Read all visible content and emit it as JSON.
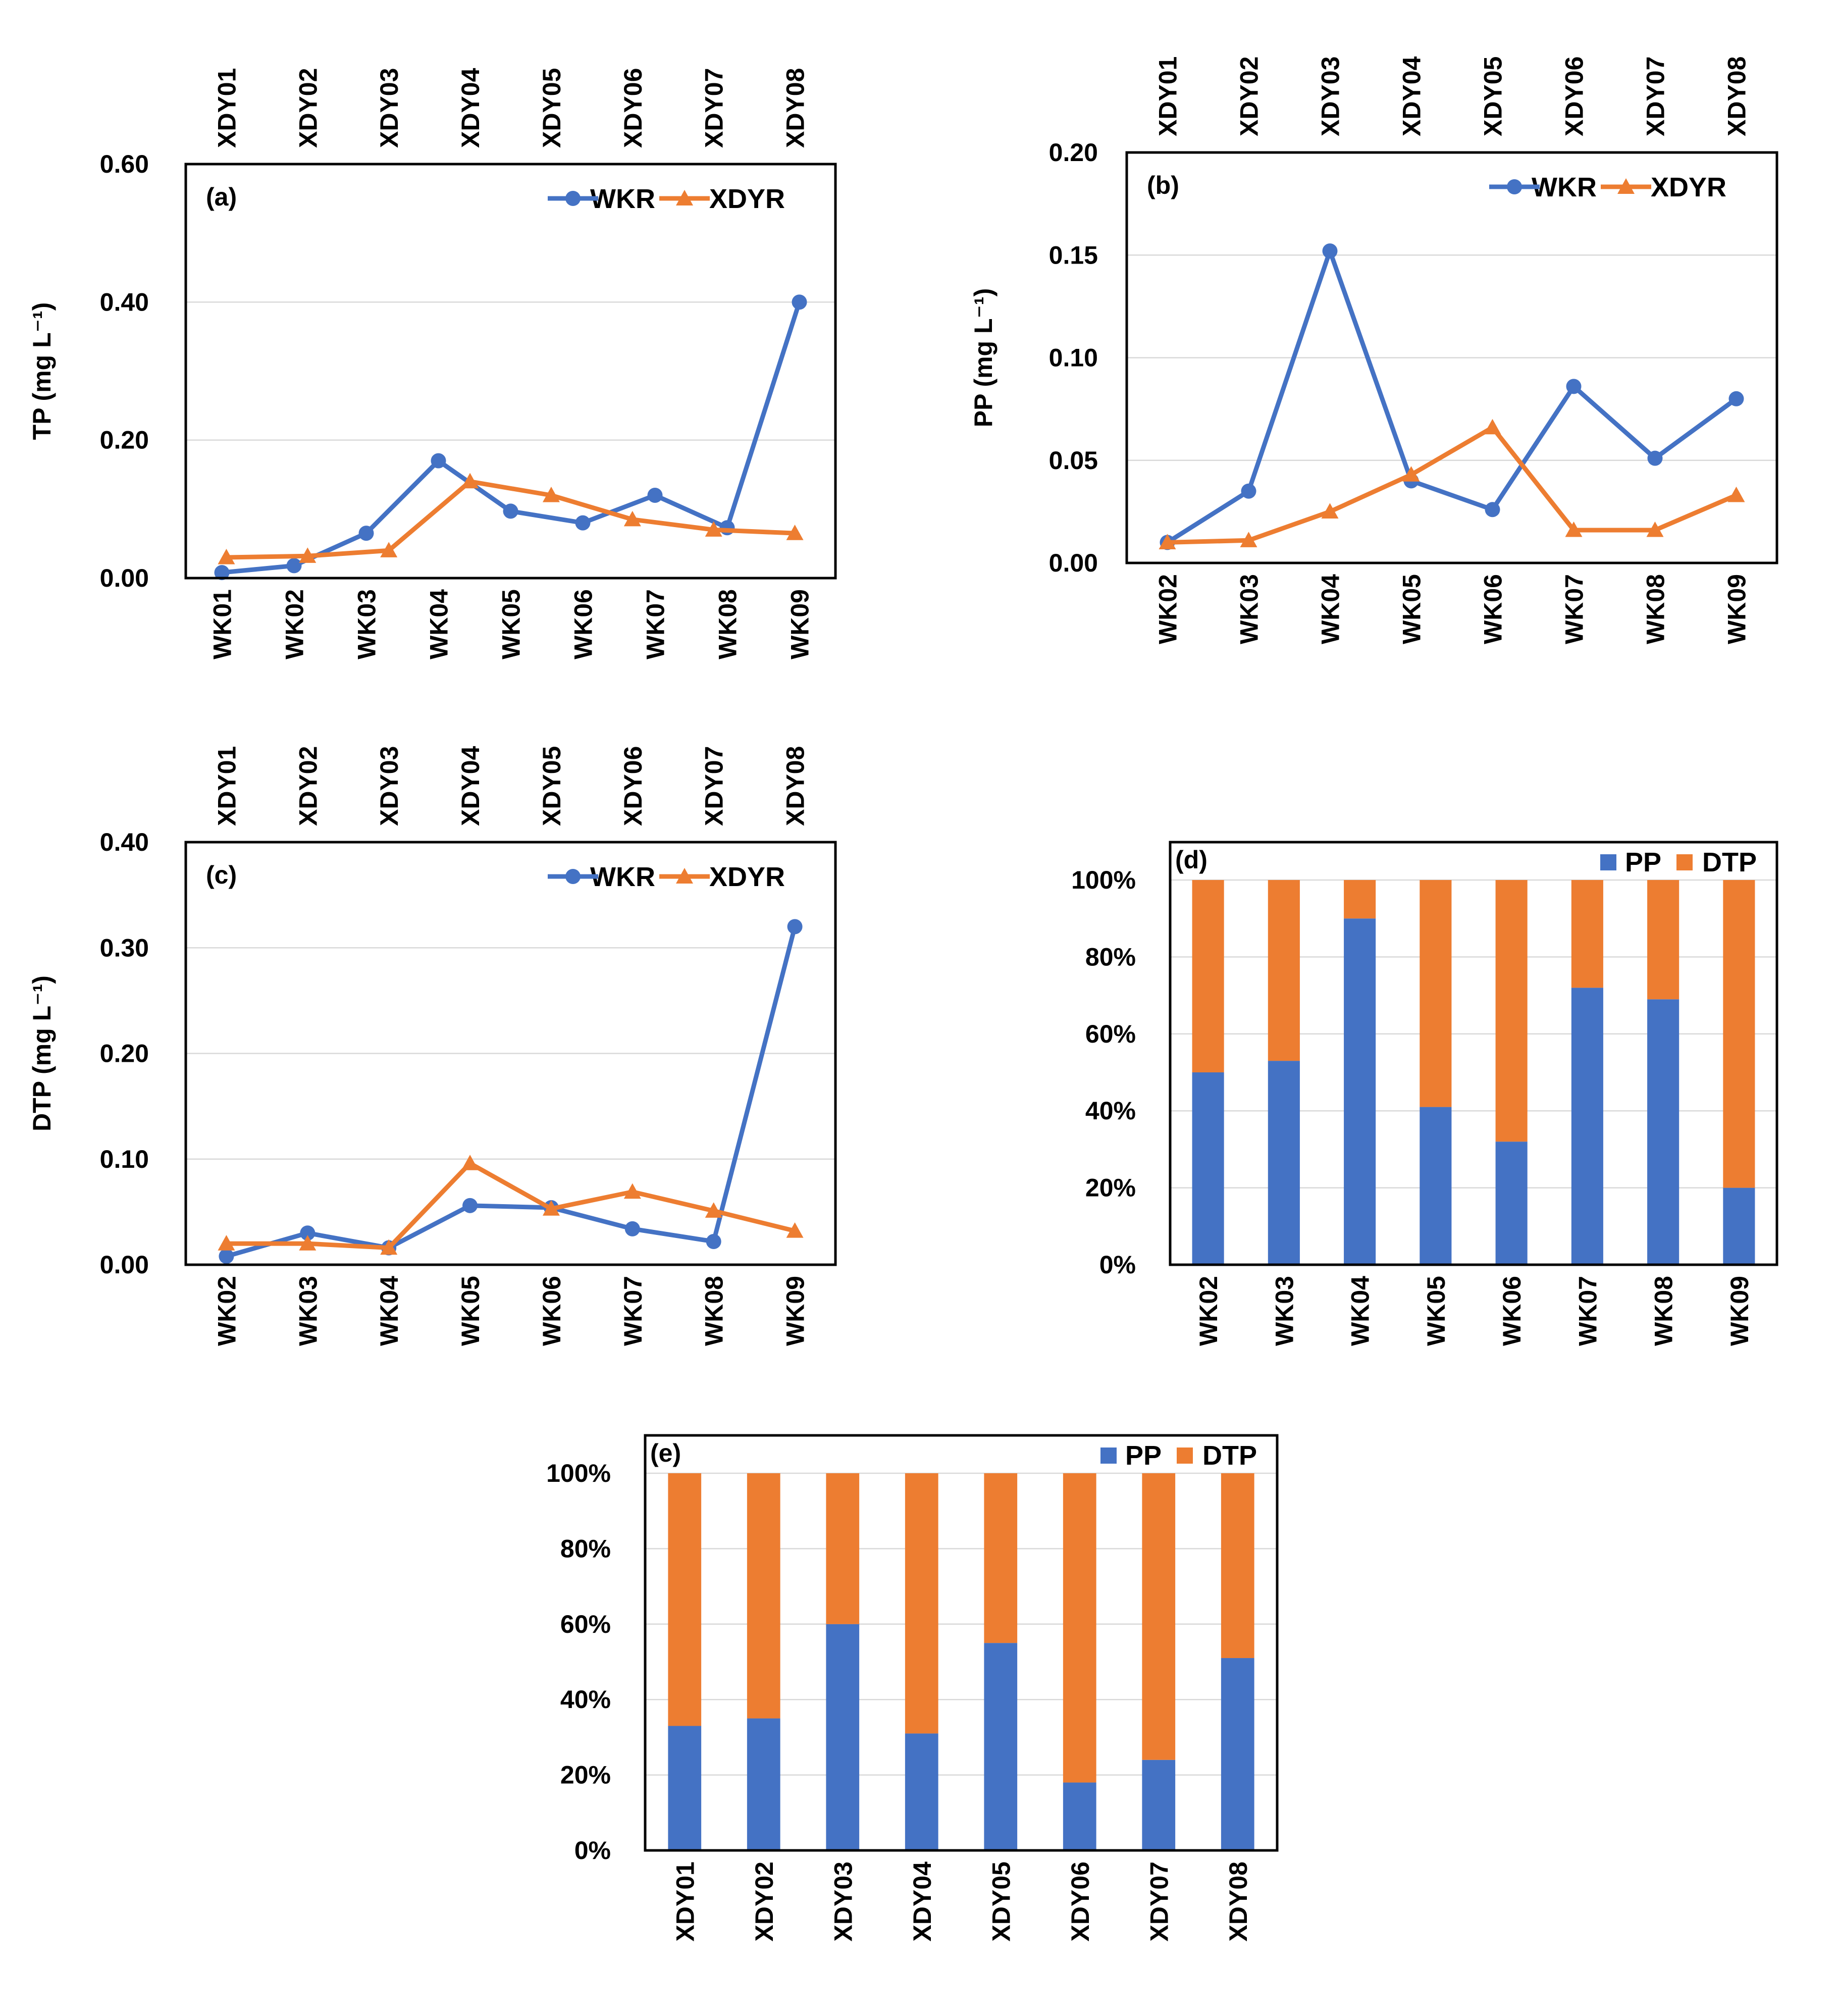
{
  "colors": {
    "blue": "#4472c4",
    "orange": "#ed7d31"
  },
  "chart_data": [
    {
      "id": "a",
      "type": "line",
      "panel_label": "(a)",
      "ylabel": "TP (mg L⁻¹)",
      "yticks": [
        "0.00",
        "0.20",
        "0.40",
        "0.60"
      ],
      "ylim": [
        0,
        0.6
      ],
      "grid": true,
      "legend_position": "top-right",
      "series": [
        {
          "name": "WKR",
          "axis": "bottom",
          "marker": "circle",
          "color": "#4472c4",
          "categories": [
            "WK01",
            "WK02",
            "WK03",
            "WK04",
            "WK05",
            "WK06",
            "WK07",
            "WK08",
            "WK09"
          ],
          "values": [
            0.008,
            0.018,
            0.065,
            0.17,
            0.097,
            0.08,
            0.12,
            0.073,
            0.4
          ]
        },
        {
          "name": "XDYR",
          "axis": "top",
          "marker": "triangle",
          "color": "#ed7d31",
          "categories": [
            "XDY01",
            "XDY02",
            "XDY03",
            "XDY04",
            "XDY05",
            "XDY06",
            "XDY07",
            "XDY08"
          ],
          "values": [
            0.03,
            0.032,
            0.04,
            0.14,
            0.12,
            0.085,
            0.07,
            0.065
          ]
        }
      ]
    },
    {
      "id": "b",
      "type": "line",
      "panel_label": "(b)",
      "ylabel": "PP (mg L⁻¹)",
      "yticks": [
        "0.00",
        "0.05",
        "0.10",
        "0.15",
        "0.20"
      ],
      "ylim": [
        0,
        0.2
      ],
      "grid": true,
      "legend_position": "top-right",
      "series": [
        {
          "name": "WKR",
          "axis": "bottom",
          "marker": "circle",
          "color": "#4472c4",
          "categories": [
            "WK02",
            "WK03",
            "WK04",
            "WK05",
            "WK06",
            "WK07",
            "WK08",
            "WK09"
          ],
          "values": [
            0.01,
            0.035,
            0.152,
            0.04,
            0.026,
            0.086,
            0.051,
            0.08
          ]
        },
        {
          "name": "XDYR",
          "axis": "top",
          "marker": "triangle",
          "color": "#ed7d31",
          "categories": [
            "XDY01",
            "XDY02",
            "XDY03",
            "XDY04",
            "XDY05",
            "XDY06",
            "XDY07",
            "XDY08"
          ],
          "values": [
            0.01,
            0.011,
            0.025,
            0.043,
            0.066,
            0.016,
            0.016,
            0.033
          ]
        }
      ]
    },
    {
      "id": "c",
      "type": "line",
      "panel_label": "(c)",
      "ylabel": "DTP (mg L⁻¹)",
      "yticks": [
        "0.00",
        "0.10",
        "0.20",
        "0.30",
        "0.40"
      ],
      "ylim": [
        0,
        0.4
      ],
      "grid": true,
      "legend_position": "top-right",
      "series": [
        {
          "name": "WKR",
          "axis": "bottom",
          "marker": "circle",
          "color": "#4472c4",
          "categories": [
            "WK02",
            "WK03",
            "WK04",
            "WK05",
            "WK06",
            "WK07",
            "WK08",
            "WK09"
          ],
          "values": [
            0.008,
            0.03,
            0.016,
            0.056,
            0.054,
            0.034,
            0.022,
            0.32
          ]
        },
        {
          "name": "XDYR",
          "axis": "top",
          "marker": "triangle",
          "color": "#ed7d31",
          "categories": [
            "XDY01",
            "XDY02",
            "XDY03",
            "XDY04",
            "XDY05",
            "XDY06",
            "XDY07",
            "XDY08"
          ],
          "values": [
            0.02,
            0.02,
            0.016,
            0.096,
            0.053,
            0.069,
            0.051,
            0.032
          ]
        }
      ]
    },
    {
      "id": "d",
      "type": "bar",
      "stacked": "percent",
      "panel_label": "(d)",
      "yticks": [
        "0%",
        "20%",
        "40%",
        "60%",
        "80%",
        "100%"
      ],
      "ylim": [
        0,
        100
      ],
      "grid": true,
      "legend_position": "top-right",
      "categories": [
        "WK02",
        "WK03",
        "WK04",
        "WK05",
        "WK06",
        "WK07",
        "WK08",
        "WK09"
      ],
      "series": [
        {
          "name": "PP",
          "color": "#4472c4",
          "values": [
            50,
            53,
            90,
            41,
            32,
            72,
            69,
            20
          ]
        },
        {
          "name": "DTP",
          "color": "#ed7d31",
          "values": [
            50,
            47,
            10,
            59,
            68,
            28,
            31,
            80
          ]
        }
      ]
    },
    {
      "id": "e",
      "type": "bar",
      "stacked": "percent",
      "panel_label": "(e)",
      "yticks": [
        "0%",
        "20%",
        "40%",
        "60%",
        "80%",
        "100%"
      ],
      "ylim": [
        0,
        100
      ],
      "grid": true,
      "legend_position": "top-right",
      "categories": [
        "XDY01",
        "XDY02",
        "XDY03",
        "XDY04",
        "XDY05",
        "XDY06",
        "XDY07",
        "XDY08"
      ],
      "series": [
        {
          "name": "PP",
          "color": "#4472c4",
          "values": [
            33,
            35,
            60,
            31,
            55,
            18,
            24,
            51
          ]
        },
        {
          "name": "DTP",
          "color": "#ed7d31",
          "values": [
            67,
            65,
            40,
            69,
            45,
            82,
            76,
            49
          ]
        }
      ]
    }
  ]
}
